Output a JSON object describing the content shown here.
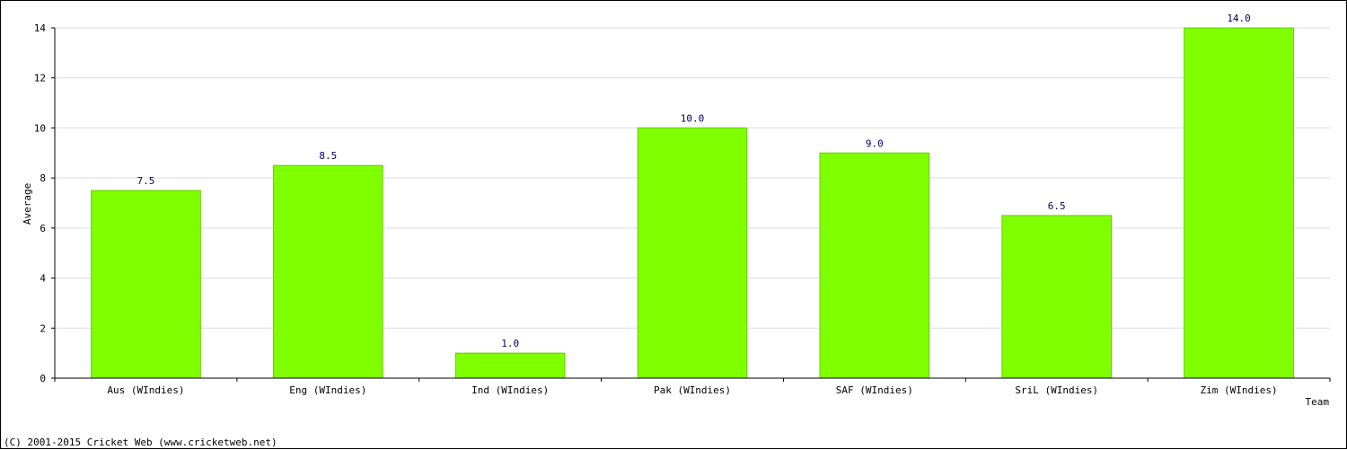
{
  "chart_data": {
    "type": "bar",
    "categories": [
      "Aus (WIndies)",
      "Eng (WIndies)",
      "Ind (WIndies)",
      "Pak (WIndies)",
      "SAF (WIndies)",
      "SriL (WIndies)",
      "Zim (WIndies)"
    ],
    "values": [
      7.5,
      8.5,
      1.0,
      10.0,
      9.0,
      6.5,
      14.0
    ],
    "value_labels": [
      "7.5",
      "8.5",
      "1.0",
      "10.0",
      "9.0",
      "6.5",
      "14.0"
    ],
    "xlabel": "Team",
    "ylabel": "Average",
    "ylim": [
      0,
      14
    ],
    "yticks": [
      "0",
      "2",
      "4",
      "6",
      "8",
      "10",
      "12",
      "14"
    ],
    "grid": true,
    "bar_color": "#80ff00",
    "value_label_color": "#000066"
  },
  "footer": {
    "copyright": "(C) 2001-2015 Cricket Web (www.cricketweb.net)"
  }
}
